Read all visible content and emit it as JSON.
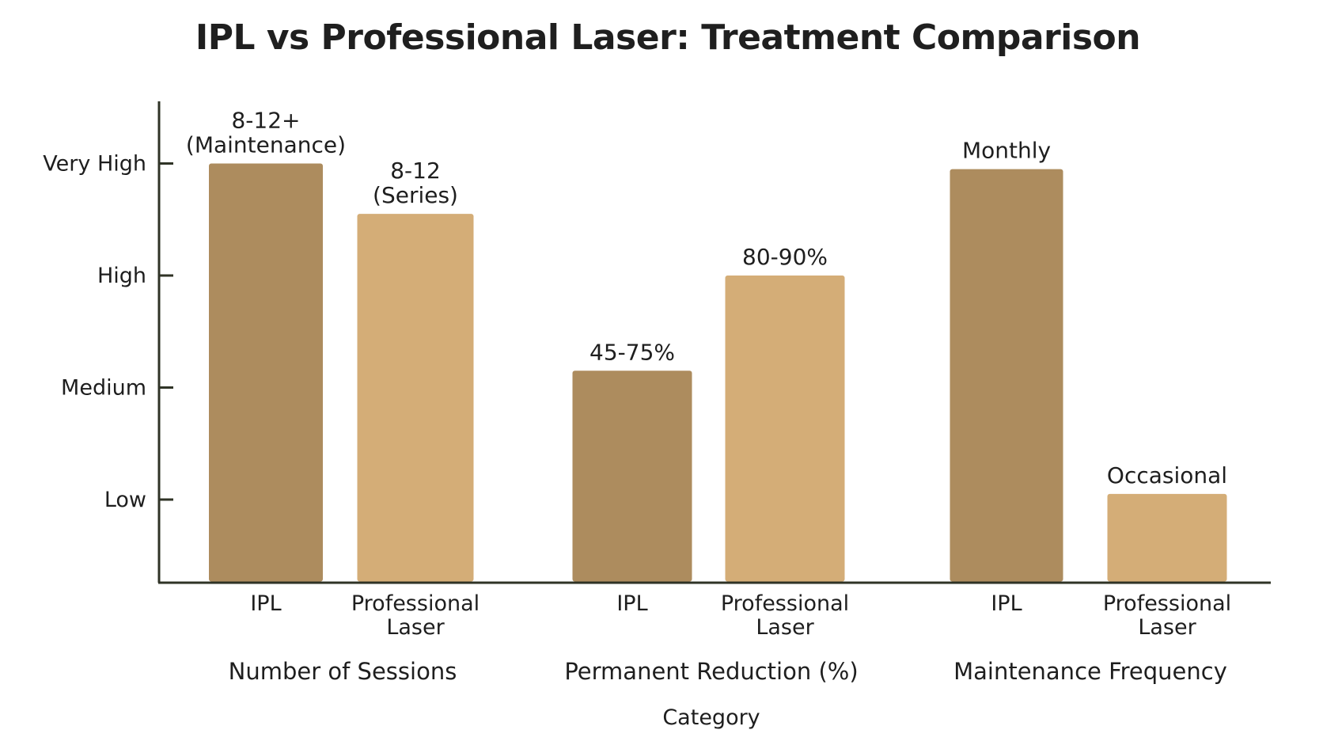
{
  "chart_data": {
    "type": "bar",
    "title": "IPL vs Professional Laser: Treatment Comparison",
    "xlabel": "Category",
    "ylabel": "",
    "y_scale": "ordinal",
    "y_levels": [
      "Low",
      "Medium",
      "High",
      "Very High"
    ],
    "y_level_values": [
      1,
      2,
      3,
      4
    ],
    "ylim": [
      0.25,
      4.75
    ],
    "grid": false,
    "legend": "none",
    "groups": [
      {
        "name": "Number of Sessions",
        "bars": [
          {
            "category": "IPL",
            "value": 4.0,
            "label": [
              "8-12+",
              "(Maintenance)"
            ],
            "color": "#ad8c5e"
          },
          {
            "category": "Professional Laser",
            "value": 3.55,
            "label": [
              "8-12",
              "(Series)"
            ],
            "color": "#d4ad77"
          }
        ]
      },
      {
        "name": "Permanent Reduction (%)",
        "bars": [
          {
            "category": "IPL",
            "value": 2.15,
            "label": [
              "45-75%"
            ],
            "color": "#ad8c5e"
          },
          {
            "category": "Professional Laser",
            "value": 3.0,
            "label": [
              "80-90%"
            ],
            "color": "#d4ad77"
          }
        ]
      },
      {
        "name": "Maintenance Frequency",
        "bars": [
          {
            "category": "IPL",
            "value": 3.95,
            "label": [
              "Monthly"
            ],
            "color": "#ad8c5e"
          },
          {
            "category": "Professional Laser",
            "value": 1.05,
            "label": [
              "Occasional"
            ],
            "color": "#d4ad77"
          }
        ]
      }
    ],
    "colors": {
      "ipl": "#ad8c5e",
      "professional_laser": "#d4ad77",
      "axis": "#2f3326"
    }
  }
}
